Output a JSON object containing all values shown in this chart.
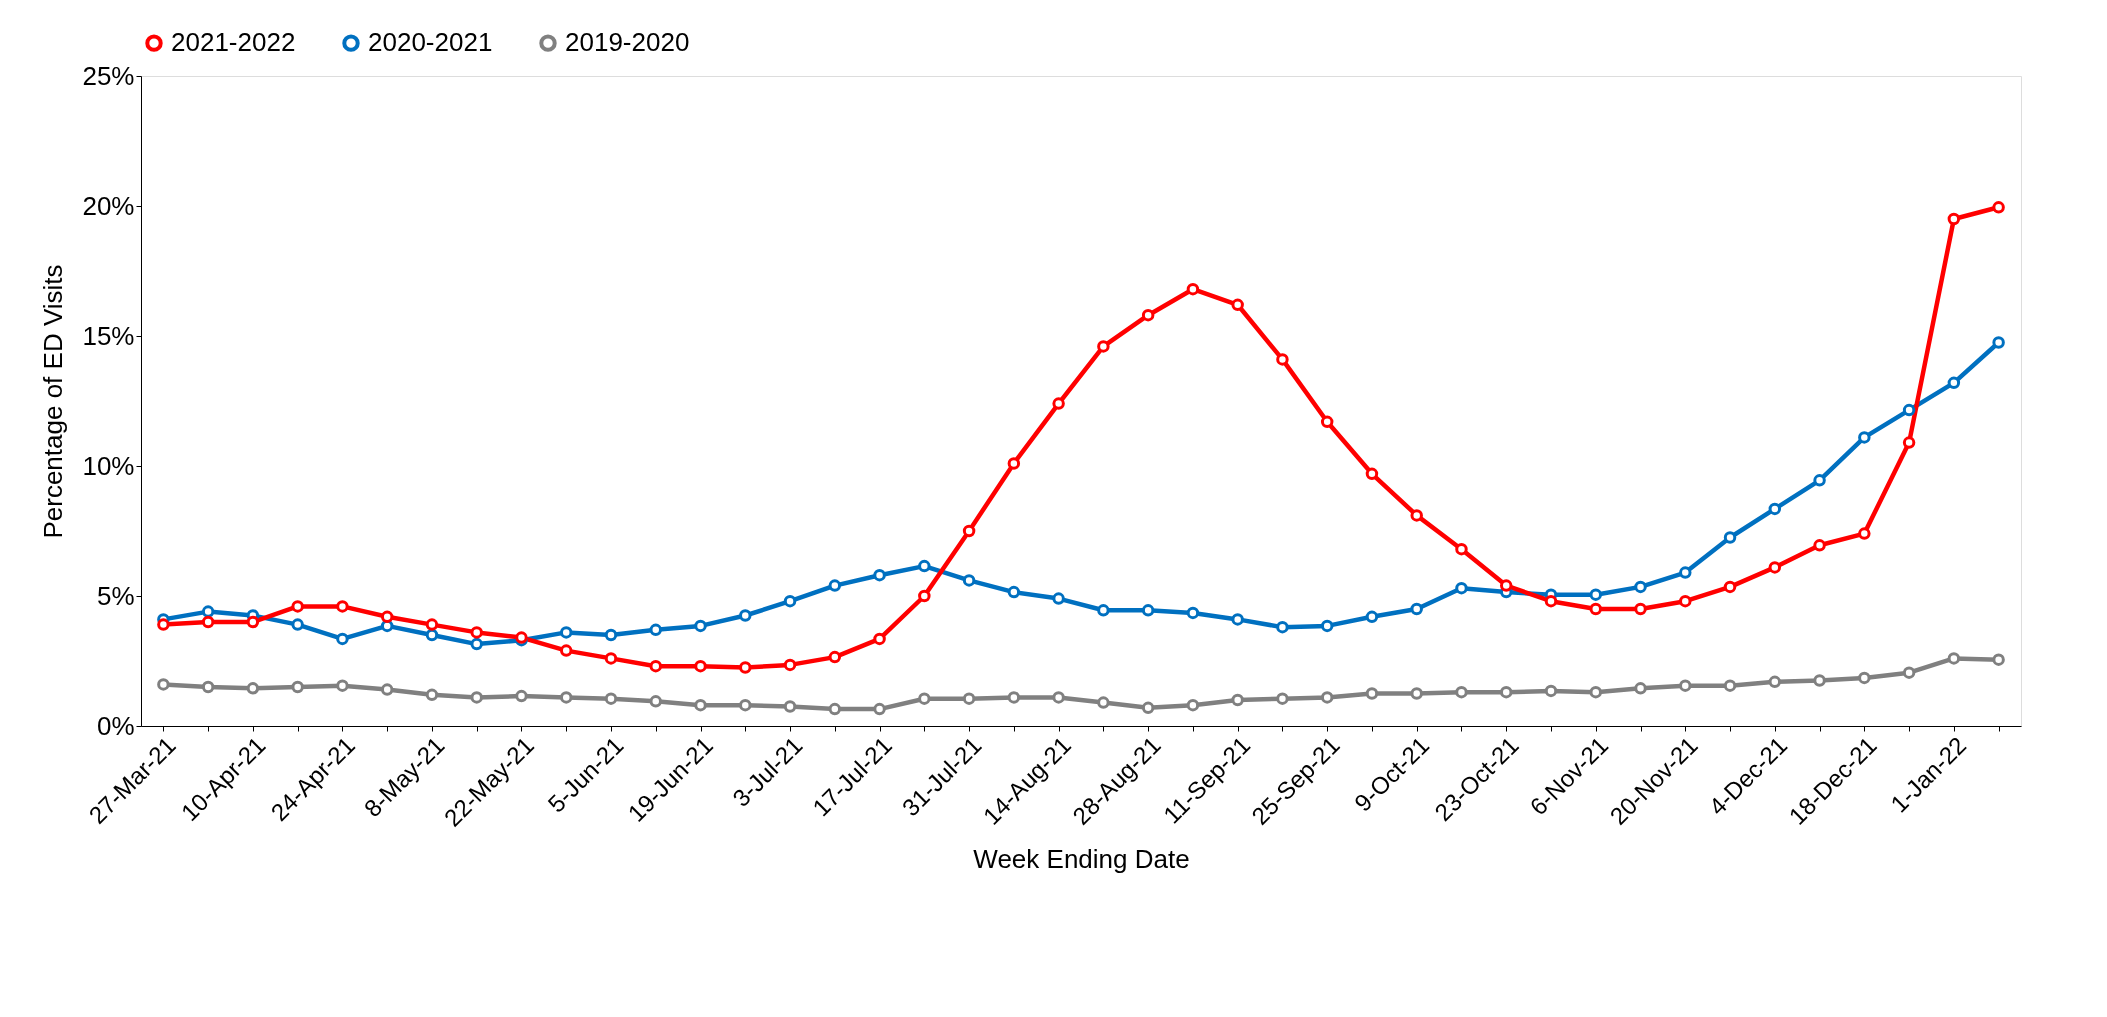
{
  "chart_data": {
    "type": "line",
    "xlabel": "Week Ending Date",
    "ylabel": "Percentage of ED Visits",
    "categories": [
      "27-Mar-21",
      null,
      "10-Apr-21",
      null,
      "24-Apr-21",
      null,
      "8-May-21",
      null,
      "22-May-21",
      null,
      "5-Jun-21",
      null,
      "19-Jun-21",
      null,
      "3-Jul-21",
      null,
      "17-Jul-21",
      null,
      "31-Jul-21",
      null,
      "14-Aug-21",
      null,
      "28-Aug-21",
      null,
      "11-Sep-21",
      null,
      "25-Sep-21",
      null,
      "9-Oct-21",
      null,
      "23-Oct-21",
      null,
      "6-Nov-21",
      null,
      "20-Nov-21",
      null,
      "4-Dec-21",
      null,
      "18-Dec-21",
      null,
      "1-Jan-22",
      null
    ],
    "series": [
      {
        "name": "2021-2022",
        "color": "#ff0000",
        "values": [
          3.9,
          4.0,
          4.0,
          4.6,
          4.6,
          4.2,
          3.9,
          3.6,
          3.4,
          2.9,
          2.6,
          2.3,
          2.3,
          2.25,
          2.35,
          2.65,
          3.35,
          5.0,
          7.5,
          10.1,
          12.4,
          14.6,
          15.8,
          16.8,
          16.2,
          14.1,
          11.7,
          9.7,
          8.1,
          6.8,
          5.4,
          4.8,
          4.5,
          4.5,
          4.8,
          5.35,
          6.1,
          6.95,
          7.4,
          10.9,
          19.5,
          19.95
        ]
      },
      {
        "name": "2020-2021",
        "color": "#0070c0",
        "values": [
          4.1,
          4.4,
          4.25,
          3.9,
          3.35,
          3.85,
          3.5,
          3.15,
          3.3,
          3.6,
          3.5,
          3.7,
          3.85,
          4.25,
          4.8,
          5.4,
          5.8,
          6.15,
          5.6,
          5.15,
          4.9,
          4.45,
          4.45,
          4.35,
          4.1,
          3.8,
          3.85,
          4.2,
          4.5,
          5.3,
          5.15,
          5.05,
          5.05,
          5.35,
          5.9,
          7.25,
          8.35,
          9.45,
          11.1,
          12.15,
          13.2,
          14.75
        ]
      },
      {
        "name": "2019-2020",
        "color": "#808080",
        "values": [
          1.6,
          1.5,
          1.45,
          1.5,
          1.55,
          1.4,
          1.2,
          1.1,
          1.15,
          1.1,
          1.05,
          0.95,
          0.8,
          0.8,
          0.75,
          0.65,
          0.65,
          1.05,
          1.05,
          1.1,
          1.1,
          0.9,
          0.7,
          0.8,
          1.0,
          1.05,
          1.1,
          1.25,
          1.25,
          1.3,
          1.3,
          1.35,
          1.3,
          1.45,
          1.55,
          1.55,
          1.7,
          1.75,
          1.85,
          2.05,
          2.6,
          2.55
        ]
      }
    ],
    "ylim": [
      0,
      25
    ],
    "yticks": [
      {
        "value": 0,
        "label": "0%"
      },
      {
        "value": 5,
        "label": "5%"
      },
      {
        "value": 10,
        "label": "10%"
      },
      {
        "value": 15,
        "label": "15%"
      },
      {
        "value": 20,
        "label": "20%"
      },
      {
        "value": 25,
        "label": "25%"
      }
    ],
    "grid": false,
    "legend": "top",
    "marker": "circle",
    "line_style": "solid"
  }
}
